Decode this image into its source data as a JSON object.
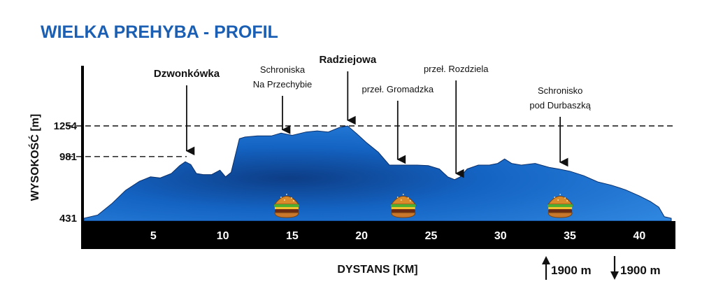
{
  "chart_data": {
    "type": "area",
    "title": "WIELKA PREHYBA - PROFIL",
    "xlabel": "DYSTANS [KM]",
    "ylabel": "WYSOKOŚĆ [m]",
    "xlim": [
      0,
      42.5
    ],
    "x_ticks": [
      5,
      10,
      15,
      20,
      25,
      30,
      35,
      40
    ],
    "y_ticks": [
      431,
      981,
      1254
    ],
    "reference_lines": [
      981,
      1254
    ],
    "grid": false,
    "area_color": "#1565c0",
    "series": [
      {
        "x": [
          0,
          1,
          2,
          3,
          4,
          4.8,
          5.5,
          6.3,
          6.9,
          7.3,
          7.7,
          8.1,
          8.6,
          9.2,
          9.8,
          10.2,
          10.6,
          11.2,
          11.6,
          12.5,
          13.5,
          14.2,
          15,
          16,
          16.8,
          17.6,
          18.4,
          19,
          19.6,
          20.4,
          21.2,
          22,
          23,
          24,
          24.8,
          25.6,
          26.2,
          26.7,
          27.1,
          27.6,
          28.4,
          29.2,
          29.8,
          30.3,
          30.8,
          31.5,
          32.5,
          33.5,
          34.2,
          35,
          36,
          37,
          38,
          39,
          40,
          40.8,
          41.4,
          41.8,
          42.3
        ],
        "y": [
          431,
          460,
          560,
          680,
          760,
          800,
          790,
          830,
          900,
          935,
          910,
          830,
          820,
          820,
          860,
          800,
          840,
          1140,
          1155,
          1165,
          1165,
          1190,
          1170,
          1200,
          1210,
          1200,
          1240,
          1254,
          1190,
          1100,
          1020,
          905,
          905,
          905,
          900,
          870,
          800,
          775,
          800,
          870,
          905,
          905,
          920,
          960,
          920,
          905,
          920,
          885,
          870,
          850,
          810,
          755,
          725,
          685,
          630,
          580,
          530,
          445,
          431
        ]
      }
    ],
    "annotations": [
      {
        "lines": [
          "Dzwonkówka"
        ],
        "x": 7.4,
        "y": 981
      },
      {
        "lines": [
          "Schroniska",
          "Na Przechybie"
        ],
        "x": 14.3,
        "y": 1170
      },
      {
        "lines": [
          "Radziejowa"
        ],
        "x": 19.0,
        "y": 1254
      },
      {
        "lines": [
          "przeł. Gromadzka"
        ],
        "x": 22.6,
        "y": 905
      },
      {
        "lines": [
          "przeł. Rozdziela"
        ],
        "x": 26.8,
        "y": 780
      },
      {
        "lines": [
          "Schronisko",
          "pod Durbaszką"
        ],
        "x": 34.3,
        "y": 880
      }
    ],
    "food_stops_km": [
      14.6,
      23.0,
      34.3
    ]
  },
  "stats": {
    "ascent": "1900 m",
    "descent": "1900 m"
  },
  "colors": {
    "title": "#1a5fb4",
    "area": "#1565c0",
    "area_light": "#2e86de",
    "area_dark": "#0b3f8a",
    "axis_bar": "#000000"
  },
  "icons": {
    "food": "burger-icon",
    "up": "arrow-up-icon",
    "down": "arrow-down-icon"
  }
}
